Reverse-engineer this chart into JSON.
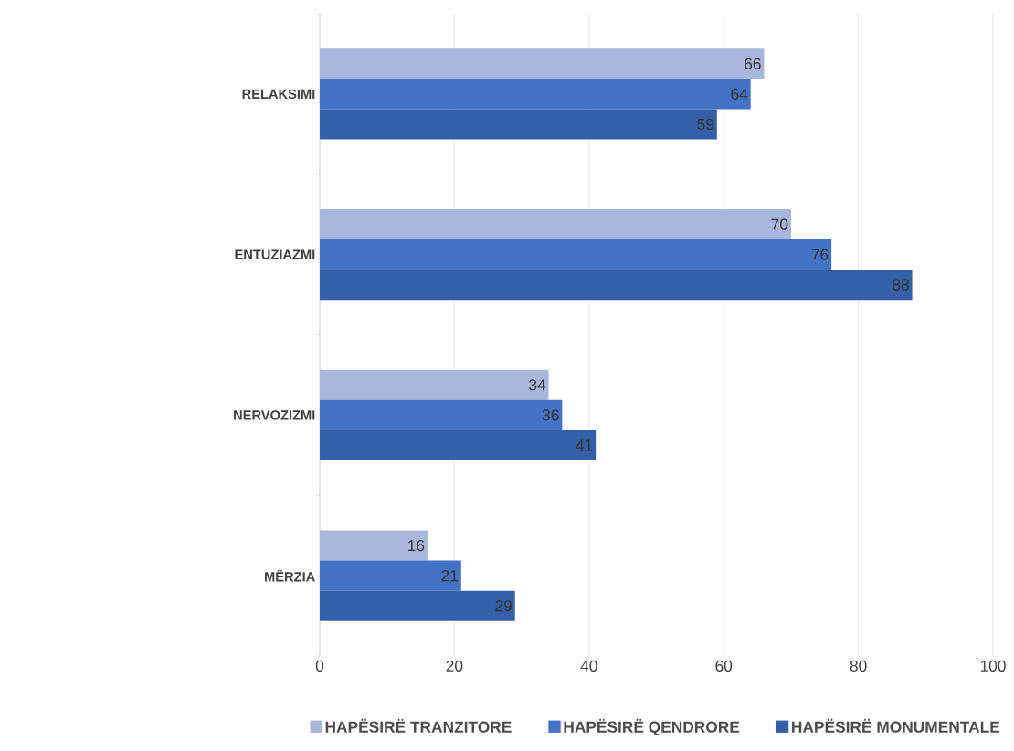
{
  "chart_data": {
    "type": "bar",
    "orientation": "horizontal",
    "categories": [
      "RELAKSIMI",
      "ENTUZIAZMI",
      "NERVOZIZMI",
      "MËRZIA"
    ],
    "series": [
      {
        "name": "HAPËSIRË TRANZITORE",
        "color": "#a9b6dc",
        "values": [
          66,
          70,
          34,
          16
        ]
      },
      {
        "name": "HAPËSIRË QENDRORE",
        "color": "#4472c4",
        "values": [
          64,
          76,
          36,
          21
        ]
      },
      {
        "name": "HAPËSIRË MONUMENTALE",
        "color": "#3560a8",
        "values": [
          59,
          88,
          41,
          29
        ]
      }
    ],
    "xlim": [
      0,
      100
    ],
    "xticks": [
      0,
      20,
      40,
      60,
      80,
      100
    ],
    "grid": "x",
    "legend": "bottom",
    "data_labels": true
  }
}
